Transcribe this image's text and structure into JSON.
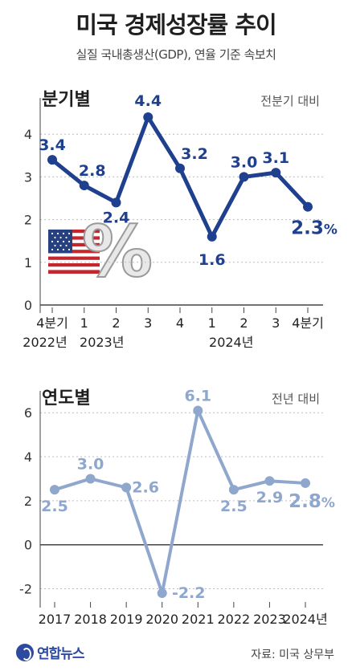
{
  "header": {
    "title": "미국 경제성장률 추이",
    "subtitle": "실질 국내총생산(GDP), 연율 기준 속보치"
  },
  "chart_data": [
    {
      "type": "line",
      "title": "분기별",
      "note": "전분기 대비",
      "categories": [
        "4분기",
        "1",
        "2",
        "3",
        "4",
        "1",
        "2",
        "3",
        "4분기"
      ],
      "year_labels": [
        "2022년",
        "2023년",
        "",
        "",
        "",
        "2024년",
        "",
        "",
        ""
      ],
      "values": [
        3.4,
        2.8,
        2.4,
        4.4,
        3.2,
        1.6,
        3.0,
        3.1,
        2.3
      ],
      "value_labels": [
        "3.4",
        "2.8",
        "2.4",
        "4.4",
        "3.2",
        "1.6",
        "3.0",
        "3.1",
        "2.3"
      ],
      "last_unit": "%",
      "yticks": [
        "0",
        "1",
        "2",
        "3",
        "4"
      ],
      "ylim": [
        0,
        4.7
      ],
      "color": "#1f3f8f",
      "grid": "horizontal dashed"
    },
    {
      "type": "line",
      "title": "연도별",
      "note": "전년 대비",
      "categories": [
        "2017",
        "2018",
        "2019",
        "2020",
        "2021",
        "2022",
        "2023",
        "2024년"
      ],
      "values": [
        2.5,
        3.0,
        2.6,
        -2.2,
        6.1,
        2.5,
        2.9,
        2.8
      ],
      "value_labels": [
        "2.5",
        "3.0",
        "2.6",
        "-2.2",
        "6.1",
        "2.5",
        "2.9",
        "2.8"
      ],
      "last_unit": "%",
      "yticks": [
        "-2",
        "0",
        "2",
        "4",
        "6"
      ],
      "ylim": [
        -2.6,
        6.7
      ],
      "color": "#8fa7cd",
      "grid": "horizontal dashed"
    }
  ],
  "footer": {
    "brand": "연합뉴스",
    "source": "자료: 미국 상무부"
  }
}
